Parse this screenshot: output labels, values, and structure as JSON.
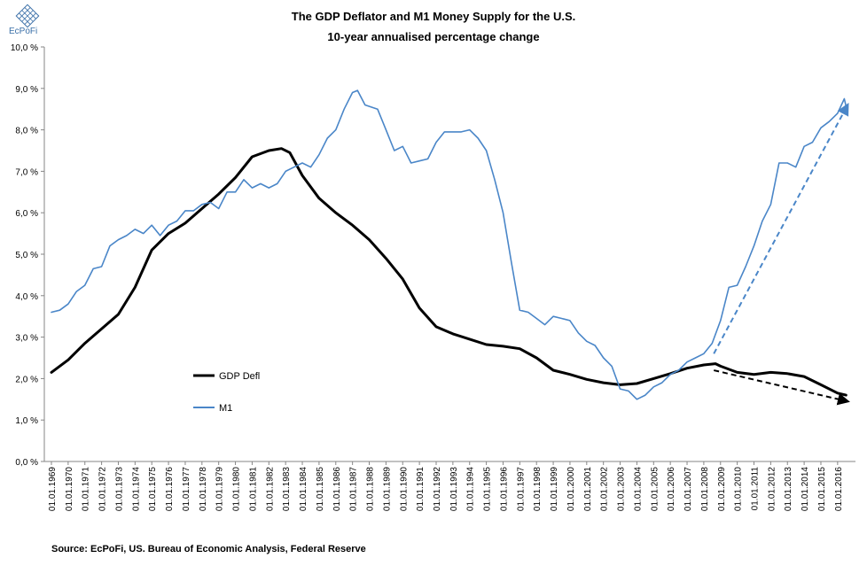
{
  "brand": {
    "name": "EcPoFi"
  },
  "chart_data": {
    "type": "line",
    "title": "The GDP Deflator and M1 Money Supply for the U.S.",
    "subtitle": "10-year annualised percentage change",
    "xlabel": "",
    "ylabel": "",
    "ylim": [
      0,
      10
    ],
    "y_ticks": [
      "0,0 %",
      "1,0 %",
      "2,0 %",
      "3,0 %",
      "4,0 %",
      "5,0 %",
      "6,0 %",
      "7,0 %",
      "8,0 %",
      "9,0 %",
      "10,0 %"
    ],
    "x_ticks": [
      "01.01.1969",
      "01.01.1970",
      "01.01.1971",
      "01.01.1972",
      "01.01.1973",
      "01.01.1974",
      "01.01.1975",
      "01.01.1976",
      "01.01.1977",
      "01.01.1978",
      "01.01.1979",
      "01.01.1980",
      "01.01.1981",
      "01.01.1982",
      "01.01.1983",
      "01.01.1984",
      "01.01.1985",
      "01.01.1986",
      "01.01.1987",
      "01.01.1988",
      "01.01.1989",
      "01.01.1990",
      "01.01.1991",
      "01.01.1992",
      "01.01.1993",
      "01.01.1994",
      "01.01.1995",
      "01.01.1996",
      "01.01.1997",
      "01.01.1998",
      "01.01.1999",
      "01.01.2000",
      "01.01.2001",
      "01.01.2002",
      "01.01.2003",
      "01.01.2004",
      "01.01.2005",
      "01.01.2006",
      "01.01.2007",
      "01.01.2008",
      "01.01.2009",
      "01.01.2010",
      "01.01.2011",
      "01.01.2012",
      "01.01.2013",
      "01.01.2014",
      "01.01.2015",
      "01.01.2016"
    ],
    "x_range": [
      1969,
      2016.75
    ],
    "series": [
      {
        "name": "GDP Defl",
        "color": "#000000",
        "points": [
          [
            1969,
            2.15
          ],
          [
            1970,
            2.45
          ],
          [
            1971,
            2.85
          ],
          [
            1972,
            3.2
          ],
          [
            1973,
            3.55
          ],
          [
            1974,
            4.2
          ],
          [
            1975,
            5.1
          ],
          [
            1976,
            5.5
          ],
          [
            1977,
            5.75
          ],
          [
            1978,
            6.1
          ],
          [
            1979,
            6.45
          ],
          [
            1980,
            6.85
          ],
          [
            1981,
            7.35
          ],
          [
            1982,
            7.5
          ],
          [
            1982.75,
            7.55
          ],
          [
            1983.25,
            7.45
          ],
          [
            1984,
            6.9
          ],
          [
            1985,
            6.35
          ],
          [
            1986,
            6.0
          ],
          [
            1987,
            5.7
          ],
          [
            1988,
            5.35
          ],
          [
            1989,
            4.9
          ],
          [
            1990,
            4.4
          ],
          [
            1991,
            3.7
          ],
          [
            1992,
            3.25
          ],
          [
            1993,
            3.08
          ],
          [
            1994,
            2.95
          ],
          [
            1995,
            2.82
          ],
          [
            1996,
            2.78
          ],
          [
            1997,
            2.72
          ],
          [
            1998,
            2.5
          ],
          [
            1999,
            2.2
          ],
          [
            2000,
            2.1
          ],
          [
            2001,
            1.98
          ],
          [
            2002,
            1.9
          ],
          [
            2003,
            1.85
          ],
          [
            2004,
            1.88
          ],
          [
            2005,
            2.0
          ],
          [
            2006,
            2.12
          ],
          [
            2007,
            2.25
          ],
          [
            2008,
            2.33
          ],
          [
            2008.7,
            2.36
          ],
          [
            2009,
            2.3
          ],
          [
            2010,
            2.15
          ],
          [
            2011,
            2.1
          ],
          [
            2012,
            2.15
          ],
          [
            2013,
            2.12
          ],
          [
            2014,
            2.05
          ],
          [
            2015,
            1.85
          ],
          [
            2016,
            1.65
          ],
          [
            2016.5,
            1.6
          ]
        ]
      },
      {
        "name": "M1",
        "color": "#4a86c8",
        "points": [
          [
            1969,
            3.6
          ],
          [
            1969.5,
            3.65
          ],
          [
            1970,
            3.8
          ],
          [
            1970.5,
            4.1
          ],
          [
            1971,
            4.25
          ],
          [
            1971.5,
            4.65
          ],
          [
            1972,
            4.7
          ],
          [
            1972.5,
            5.2
          ],
          [
            1973,
            5.35
          ],
          [
            1973.5,
            5.45
          ],
          [
            1974,
            5.6
          ],
          [
            1974.5,
            5.5
          ],
          [
            1975,
            5.7
          ],
          [
            1975.5,
            5.45
          ],
          [
            1976,
            5.7
          ],
          [
            1976.5,
            5.8
          ],
          [
            1977,
            6.05
          ],
          [
            1977.5,
            6.05
          ],
          [
            1978,
            6.2
          ],
          [
            1978.5,
            6.25
          ],
          [
            1979,
            6.1
          ],
          [
            1979.5,
            6.5
          ],
          [
            1980,
            6.5
          ],
          [
            1980.5,
            6.8
          ],
          [
            1981,
            6.6
          ],
          [
            1981.5,
            6.7
          ],
          [
            1982,
            6.6
          ],
          [
            1982.5,
            6.7
          ],
          [
            1983,
            7.0
          ],
          [
            1983.5,
            7.1
          ],
          [
            1984,
            7.2
          ],
          [
            1984.5,
            7.1
          ],
          [
            1985,
            7.4
          ],
          [
            1985.5,
            7.8
          ],
          [
            1986,
            8.0
          ],
          [
            1986.5,
            8.5
          ],
          [
            1987,
            8.9
          ],
          [
            1987.3,
            8.95
          ],
          [
            1987.75,
            8.6
          ],
          [
            1988.5,
            8.5
          ],
          [
            1989,
            8.0
          ],
          [
            1989.5,
            7.5
          ],
          [
            1990,
            7.6
          ],
          [
            1990.5,
            7.2
          ],
          [
            1991,
            7.25
          ],
          [
            1991.5,
            7.3
          ],
          [
            1992,
            7.7
          ],
          [
            1992.5,
            7.95
          ],
          [
            1993,
            7.95
          ],
          [
            1993.5,
            7.95
          ],
          [
            1994,
            8.0
          ],
          [
            1994.5,
            7.8
          ],
          [
            1995,
            7.5
          ],
          [
            1995.5,
            6.8
          ],
          [
            1996,
            6.0
          ],
          [
            1996.5,
            4.8
          ],
          [
            1997,
            3.65
          ],
          [
            1997.5,
            3.6
          ],
          [
            1998,
            3.45
          ],
          [
            1998.5,
            3.3
          ],
          [
            1999,
            3.5
          ],
          [
            1999.5,
            3.45
          ],
          [
            2000,
            3.4
          ],
          [
            2000.5,
            3.1
          ],
          [
            2001,
            2.9
          ],
          [
            2001.5,
            2.8
          ],
          [
            2002,
            2.5
          ],
          [
            2002.5,
            2.3
          ],
          [
            2003,
            1.75
          ],
          [
            2003.5,
            1.7
          ],
          [
            2004,
            1.5
          ],
          [
            2004.5,
            1.6
          ],
          [
            2005,
            1.8
          ],
          [
            2005.5,
            1.9
          ],
          [
            2006,
            2.1
          ],
          [
            2006.5,
            2.2
          ],
          [
            2007,
            2.4
          ],
          [
            2007.5,
            2.5
          ],
          [
            2008,
            2.6
          ],
          [
            2008.5,
            2.85
          ],
          [
            2009,
            3.4
          ],
          [
            2009.5,
            4.2
          ],
          [
            2010,
            4.25
          ],
          [
            2010.5,
            4.7
          ],
          [
            2011,
            5.2
          ],
          [
            2011.5,
            5.8
          ],
          [
            2012,
            6.2
          ],
          [
            2012.5,
            7.2
          ],
          [
            2013,
            7.2
          ],
          [
            2013.5,
            7.1
          ],
          [
            2014,
            7.6
          ],
          [
            2014.5,
            7.7
          ],
          [
            2015,
            8.05
          ],
          [
            2015.5,
            8.2
          ],
          [
            2016,
            8.4
          ],
          [
            2016.4,
            8.75
          ],
          [
            2016.6,
            8.4
          ]
        ]
      }
    ],
    "annotations": [
      {
        "type": "dashed-arrow",
        "color": "#4a86c8",
        "from": [
          2008.6,
          2.6
        ],
        "to": [
          2016.6,
          8.6
        ]
      },
      {
        "type": "dashed-arrow",
        "color": "#000000",
        "from": [
          2008.6,
          2.2
        ],
        "to": [
          2016.6,
          1.45
        ]
      }
    ],
    "legend": [
      {
        "label": "GDP Defl",
        "color": "#000000"
      },
      {
        "label": "M1",
        "color": "#4a86c8"
      }
    ],
    "legend_position": "center-left",
    "source": "Source: EcPoFi,  US. Bureau of Economic Analysis, Federal Reserve"
  }
}
